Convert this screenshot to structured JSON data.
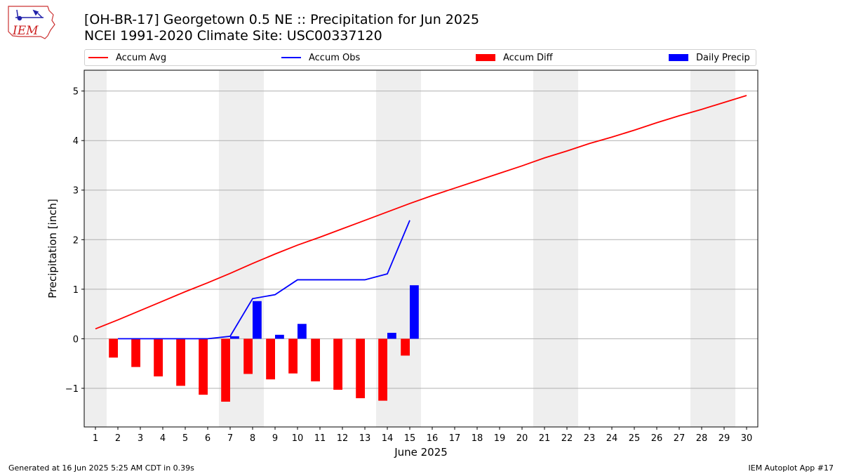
{
  "header": {
    "title_line1": "[OH-BR-17] Georgetown 0.5 NE :: Precipitation for Jun 2025",
    "title_line2": "NCEI 1991-2020 Climate Site: USC00337120",
    "logo_text": "IEM"
  },
  "footer": {
    "generated": "Generated at 16 Jun 2025 5:25 AM CDT in 0.39s",
    "app": "IEM Autoplot App #17"
  },
  "colors": {
    "avg": "#ff0000",
    "obs": "#0000ff",
    "diff": "#ff0000",
    "daily": "#0000ff",
    "weekend_band": "#eeeeee",
    "grid": "#b0b0b0"
  },
  "chart_data": {
    "type": "bar",
    "title": "[OH-BR-17] Georgetown 0.5 NE :: Precipitation for Jun 2025",
    "subtitle": "NCEI 1991-2020 Climate Site: USC00337120",
    "xlabel": "June 2025",
    "ylabel": "Precipitation [inch]",
    "xlim": [
      0.5,
      30.5
    ],
    "ylim": [
      -1.78,
      5.42
    ],
    "yticks": [
      -1,
      0,
      1,
      2,
      3,
      4,
      5
    ],
    "ytick_labels": [
      "−1",
      "0",
      "1",
      "2",
      "3",
      "4",
      "5"
    ],
    "grid": "horizontal",
    "legend_position": "top",
    "legend": [
      "Accum Avg",
      "Accum Obs",
      "Accum Diff",
      "Daily Precip"
    ],
    "days": [
      1,
      2,
      3,
      4,
      5,
      6,
      7,
      8,
      9,
      10,
      11,
      12,
      13,
      14,
      15,
      16,
      17,
      18,
      19,
      20,
      21,
      22,
      23,
      24,
      25,
      26,
      27,
      28,
      29,
      30
    ],
    "weekend_days": [
      1,
      7,
      8,
      14,
      15,
      21,
      22,
      28,
      29
    ],
    "series": [
      {
        "name": "Accum Avg",
        "type": "line",
        "values": [
          0.2,
          0.38,
          0.57,
          0.76,
          0.95,
          1.13,
          1.32,
          1.52,
          1.71,
          1.89,
          2.05,
          2.22,
          2.39,
          2.56,
          2.73,
          2.89,
          3.04,
          3.19,
          3.34,
          3.49,
          3.65,
          3.79,
          3.94,
          4.07,
          4.21,
          4.36,
          4.5,
          4.63,
          4.77,
          4.91
        ]
      },
      {
        "name": "Accum Obs",
        "type": "line",
        "x": [
          2,
          3,
          4,
          5,
          6,
          7,
          8,
          9,
          10,
          11,
          12,
          13,
          14,
          15
        ],
        "values": [
          0.0,
          0.0,
          0.0,
          0.0,
          0.0,
          0.05,
          0.81,
          0.89,
          1.19,
          1.19,
          1.19,
          1.19,
          1.31,
          2.39
        ]
      },
      {
        "name": "Accum Diff",
        "type": "bar",
        "x": [
          2,
          3,
          4,
          5,
          6,
          7,
          8,
          9,
          10,
          11,
          12,
          13,
          14,
          15
        ],
        "values": [
          -0.38,
          -0.57,
          -0.76,
          -0.95,
          -1.13,
          -1.27,
          -0.71,
          -0.82,
          -0.7,
          -0.86,
          -1.03,
          -1.2,
          -1.25,
          -0.34
        ]
      },
      {
        "name": "Daily Precip",
        "type": "bar",
        "x": [
          7,
          8,
          9,
          10,
          14,
          15
        ],
        "values": [
          0.05,
          0.76,
          0.08,
          0.3,
          0.12,
          1.08
        ]
      }
    ]
  }
}
